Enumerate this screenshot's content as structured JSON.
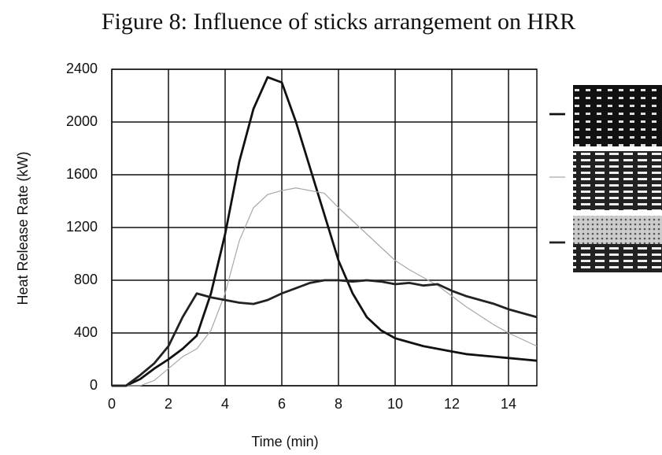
{
  "chart_data": {
    "type": "line",
    "title": "Figure 8: Influence of sticks arrangement on HRR",
    "x_label": "Time (min)",
    "y_label": "Heat Release Rate (kW)",
    "x": [
      0,
      0.5,
      1,
      1.5,
      2,
      2.5,
      3,
      3.5,
      4,
      4.5,
      5,
      5.5,
      6,
      6.5,
      7,
      7.5,
      8,
      8.5,
      9,
      9.5,
      10,
      10.5,
      11,
      11.5,
      12,
      12.5,
      13,
      13.5,
      14,
      14.5,
      15
    ],
    "series": [
      {
        "color": "#111111",
        "values": [
          0,
          0,
          50,
          130,
          200,
          280,
          380,
          700,
          1150,
          1700,
          2100,
          2340,
          2300,
          2000,
          1650,
          1300,
          950,
          700,
          520,
          420,
          360,
          330,
          300,
          280,
          260,
          240,
          230,
          220,
          210,
          200,
          190
        ]
      },
      {
        "color": "#a8a8a8",
        "values": [
          0,
          0,
          0,
          40,
          130,
          220,
          280,
          420,
          700,
          1100,
          1350,
          1450,
          1480,
          1500,
          1480,
          1460,
          1350,
          1250,
          1150,
          1050,
          950,
          880,
          820,
          760,
          680,
          600,
          530,
          460,
          400,
          350,
          300
        ]
      },
      {
        "color": "#222222",
        "values": [
          0,
          0,
          80,
          170,
          300,
          520,
          700,
          670,
          650,
          630,
          620,
          650,
          700,
          740,
          780,
          800,
          800,
          790,
          800,
          790,
          770,
          780,
          760,
          770,
          720,
          680,
          650,
          620,
          580,
          550,
          520
        ]
      }
    ],
    "xlim": [
      0,
      15
    ],
    "xticks": [
      0,
      2,
      4,
      6,
      8,
      10,
      12,
      14
    ],
    "ylim": [
      0,
      2400
    ],
    "yticks": [
      0,
      400,
      800,
      1200,
      1600,
      2000,
      2400
    ],
    "grid": true
  }
}
